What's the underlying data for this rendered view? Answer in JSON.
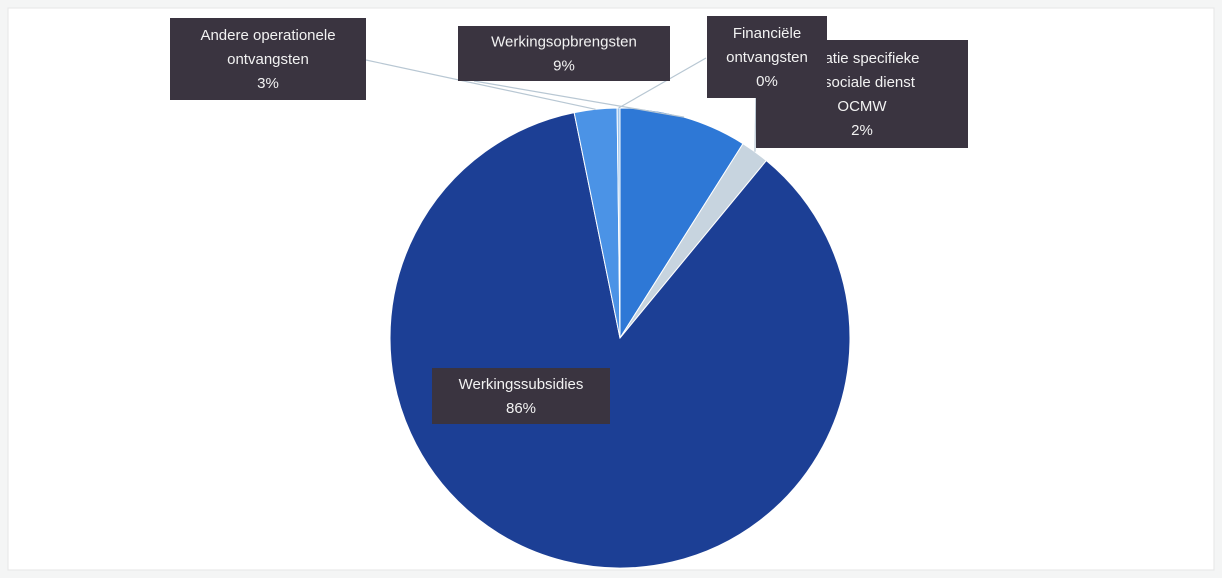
{
  "chart_data": {
    "type": "pie",
    "slices": [
      {
        "label_lines": [
          "Werkingsopbrengsten"
        ],
        "pct_label": "9%",
        "value": 9,
        "color": "#2e78d6"
      },
      {
        "label_lines": [
          "…ratie specifieke",
          "…sociale dienst",
          "OCMW"
        ],
        "pct_label": "2%",
        "value": 2,
        "color": "#c7d4df"
      },
      {
        "label_lines": [
          "Werkingssubsidies"
        ],
        "pct_label": "86%",
        "value": 86,
        "color": "#1c3f95"
      },
      {
        "label_lines": [
          "Andere operationele",
          "ontvangsten"
        ],
        "pct_label": "3%",
        "value": 3,
        "color": "#4b93e6"
      },
      {
        "label_lines": [
          "Financiële",
          "ontvangsten"
        ],
        "pct_label": "0%",
        "value": 0.2,
        "color": "#9cc4ee"
      }
    ]
  }
}
